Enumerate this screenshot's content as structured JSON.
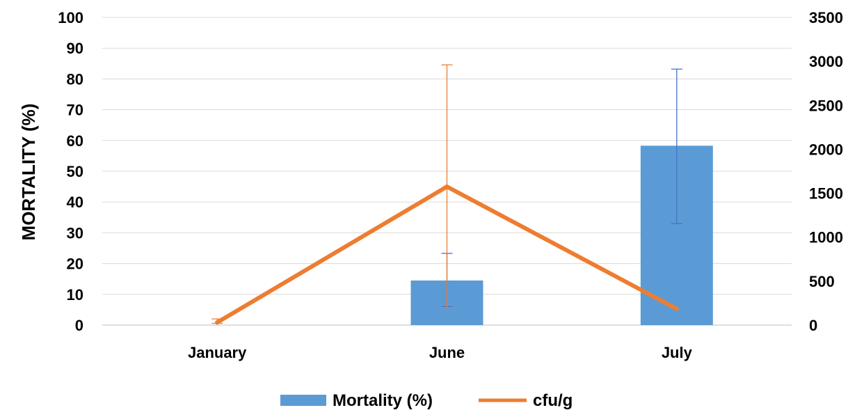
{
  "chart_data": {
    "type": "bar+line",
    "categories": [
      "January",
      "June",
      "July"
    ],
    "ylabel": "MORTALITY (%)",
    "ylim": [
      0,
      100
    ],
    "y_ticks": [
      0,
      10,
      20,
      30,
      40,
      50,
      60,
      70,
      80,
      90,
      100
    ],
    "y2lim": [
      0,
      3500
    ],
    "y2_ticks": [
      0,
      500,
      1000,
      1500,
      2000,
      2500,
      3000,
      3500
    ],
    "grid": "horizontal",
    "legend_position": "bottom",
    "series": [
      {
        "name": "Mortality (%)",
        "type": "bar",
        "axis": "left",
        "color": "#5B9BD5",
        "values": [
          0,
          14.5,
          58.3
        ],
        "error_low": [
          null,
          6,
          33
        ],
        "error_high": [
          null,
          23.3,
          83.2
        ]
      },
      {
        "name": "cfu/g",
        "type": "line",
        "axis": "right",
        "color": "#ED7D31",
        "values": [
          30,
          1575,
          185
        ],
        "error_low": [
          20,
          200,
          null
        ],
        "error_high": [
          70,
          2960,
          null
        ]
      }
    ]
  }
}
